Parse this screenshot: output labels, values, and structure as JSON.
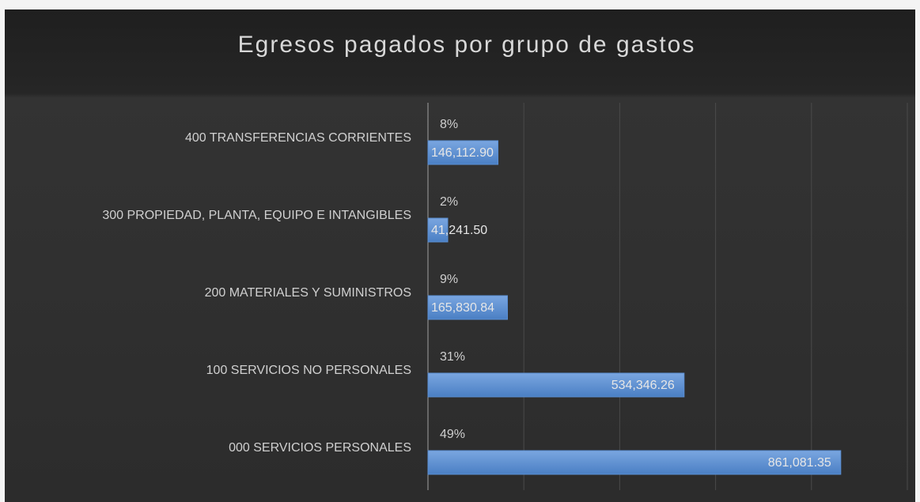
{
  "chart_data": {
    "type": "hbar",
    "title": "Egresos pagados por grupo de gastos",
    "categories": [
      "400 TRANSFERENCIAS CORRIENTES",
      "300 PROPIEDAD, PLANTA, EQUIPO  E INTANGIBLES",
      "200 MATERIALES Y SUMINISTROS",
      "100 SERVICIOS NO PERSONALES",
      "000 SERVICIOS PERSONALES"
    ],
    "values": [
      146112.9,
      41241.5,
      165830.84,
      534346.26,
      861081.35
    ],
    "value_labels": [
      "146,112.90",
      "41,241.50",
      "165,830.84",
      "534,346.26",
      "861,081.35"
    ],
    "percentages": {
      "values": [
        8,
        2,
        9,
        31,
        49
      ],
      "value_labels": [
        "8%",
        "2%",
        "9%",
        "31%",
        "49%"
      ]
    },
    "color": "#5b8fd3",
    "xlim": [
      0,
      1000000
    ],
    "xticks": [
      0,
      200000,
      400000,
      600000,
      800000,
      1000000
    ],
    "grid": true
  }
}
